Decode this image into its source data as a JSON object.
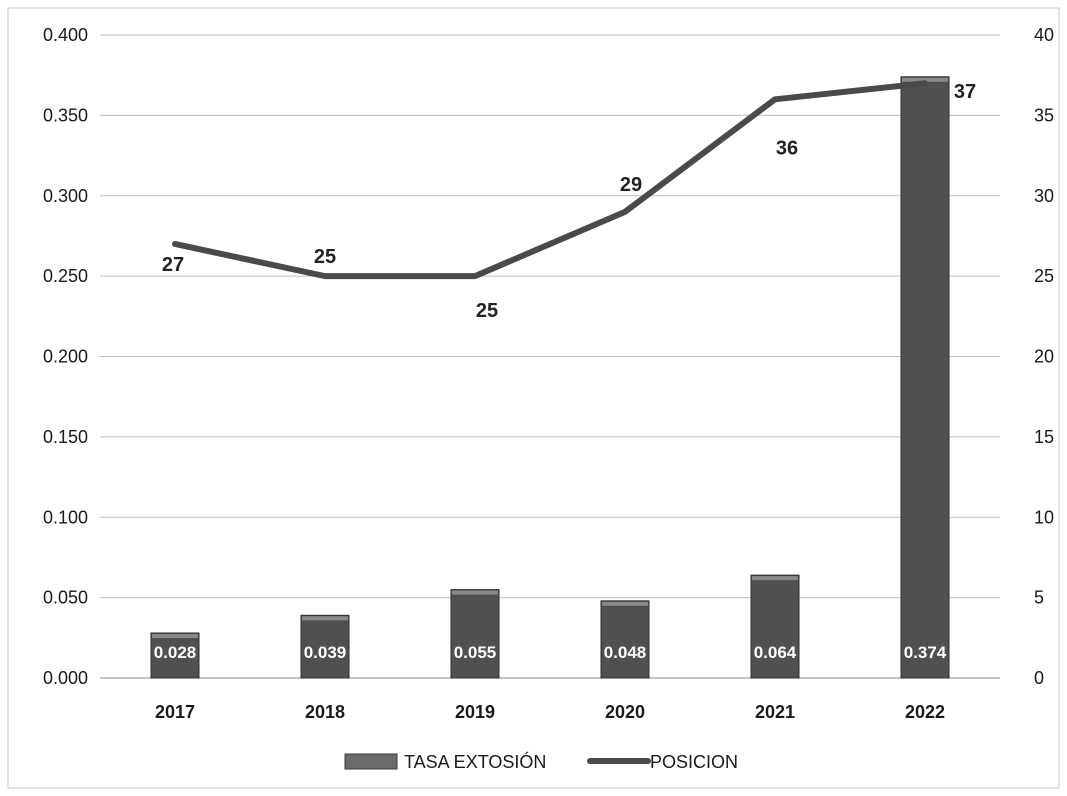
{
  "chart_data": {
    "type": "bar",
    "categories": [
      "2017",
      "2018",
      "2019",
      "2020",
      "2021",
      "2022"
    ],
    "series": [
      {
        "name": "TASA EXTOSIÓN",
        "type": "bar",
        "axis": "left",
        "values": [
          0.028,
          0.039,
          0.055,
          0.048,
          0.064,
          0.374
        ],
        "labels": [
          "0.028",
          "0.039",
          "0.055",
          "0.048",
          "0.064",
          "0.374"
        ],
        "color": "#505050"
      },
      {
        "name": "POSICION",
        "type": "line",
        "axis": "right",
        "values": [
          27,
          25,
          25,
          29,
          36,
          37
        ],
        "labels": [
          "27",
          "25",
          "25",
          "29",
          "36",
          "37"
        ],
        "color": "#4a4a4a"
      }
    ],
    "y_left": {
      "ylim": [
        0,
        0.4
      ],
      "ticks": [
        "0.000",
        "0.050",
        "0.100",
        "0.150",
        "0.200",
        "0.250",
        "0.300",
        "0.350",
        "0.400"
      ]
    },
    "y_right": {
      "ylim": [
        0,
        40
      ],
      "ticks": [
        "0",
        "5",
        "10",
        "15",
        "20",
        "25",
        "30",
        "35",
        "40"
      ]
    },
    "title": "",
    "xlabel": "",
    "ylabel": "",
    "grid": true,
    "legend_position": "bottom"
  }
}
